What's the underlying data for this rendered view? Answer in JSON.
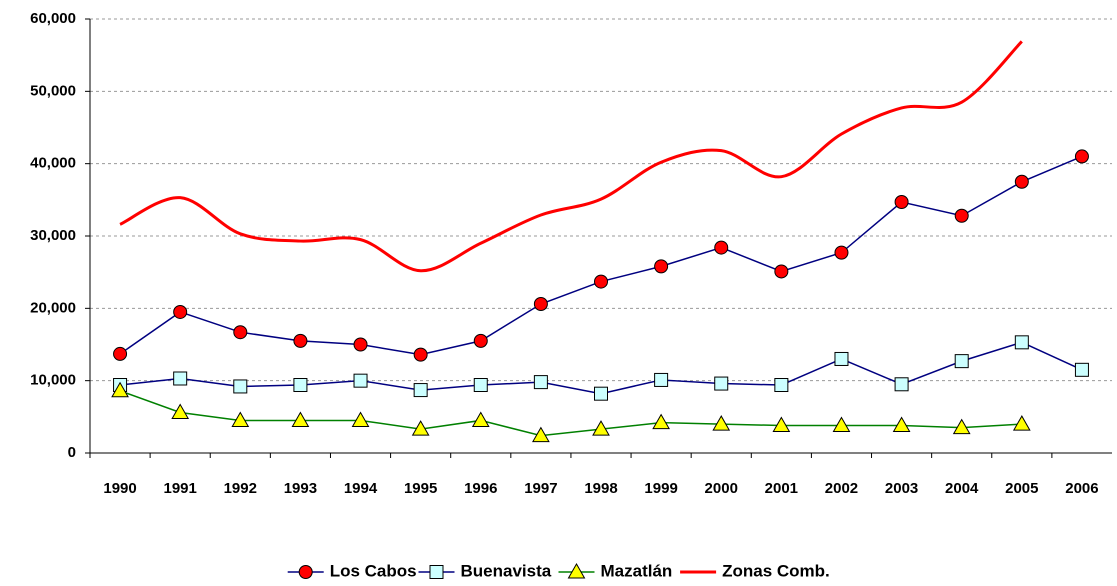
{
  "chart_data": {
    "type": "line",
    "categories": [
      "1990",
      "1991",
      "1992",
      "1993",
      "1994",
      "1995",
      "1996",
      "1997",
      "1998",
      "1999",
      "2000",
      "2001",
      "2002",
      "2003",
      "2004",
      "2005",
      "2006"
    ],
    "series": [
      {
        "name": "Los Cabos",
        "color": "#000080",
        "marker": "circle",
        "marker_color": "#ff0000",
        "values": [
          13700,
          19500,
          16700,
          15500,
          15000,
          13600,
          15500,
          20600,
          23700,
          25800,
          28400,
          25100,
          27700,
          34700,
          32800,
          37500,
          41000
        ]
      },
      {
        "name": "Buenavista",
        "color": "#000080",
        "marker": "square",
        "marker_color": "#ccffff",
        "values": [
          9400,
          10300,
          9200,
          9400,
          10000,
          8700,
          9400,
          9800,
          8200,
          10100,
          9600,
          9400,
          13000,
          9500,
          12700,
          15300,
          11500
        ]
      },
      {
        "name": "Mazatlán",
        "color": "#008000",
        "marker": "triangle",
        "marker_color": "#ffff00",
        "values": [
          8600,
          5600,
          4500,
          4500,
          4500,
          3300,
          4500,
          2400,
          3300,
          4200,
          4000,
          3800,
          3800,
          3800,
          3500,
          4000,
          null
        ]
      },
      {
        "name": "Zonas Comb.",
        "color": "#ff0000",
        "marker": "none",
        "smooth": true,
        "values": [
          31600,
          35300,
          30300,
          29300,
          29500,
          25200,
          29000,
          32900,
          35100,
          40200,
          41800,
          38200,
          44100,
          47700,
          48500,
          56900,
          null
        ]
      }
    ],
    "ylim": [
      0,
      60000
    ],
    "yticks": [
      0,
      {
        "value": 10000,
        "label": "10,000"
      },
      {
        "value": 20000,
        "label": "20,000"
      },
      {
        "value": 30000,
        "label": "30,000"
      },
      {
        "value": 40000,
        "label": "40,000"
      },
      {
        "value": 50000,
        "label": "50,000"
      },
      {
        "value": 60000,
        "label": "60,000"
      }
    ],
    "grid": true,
    "legend": "bottom"
  }
}
